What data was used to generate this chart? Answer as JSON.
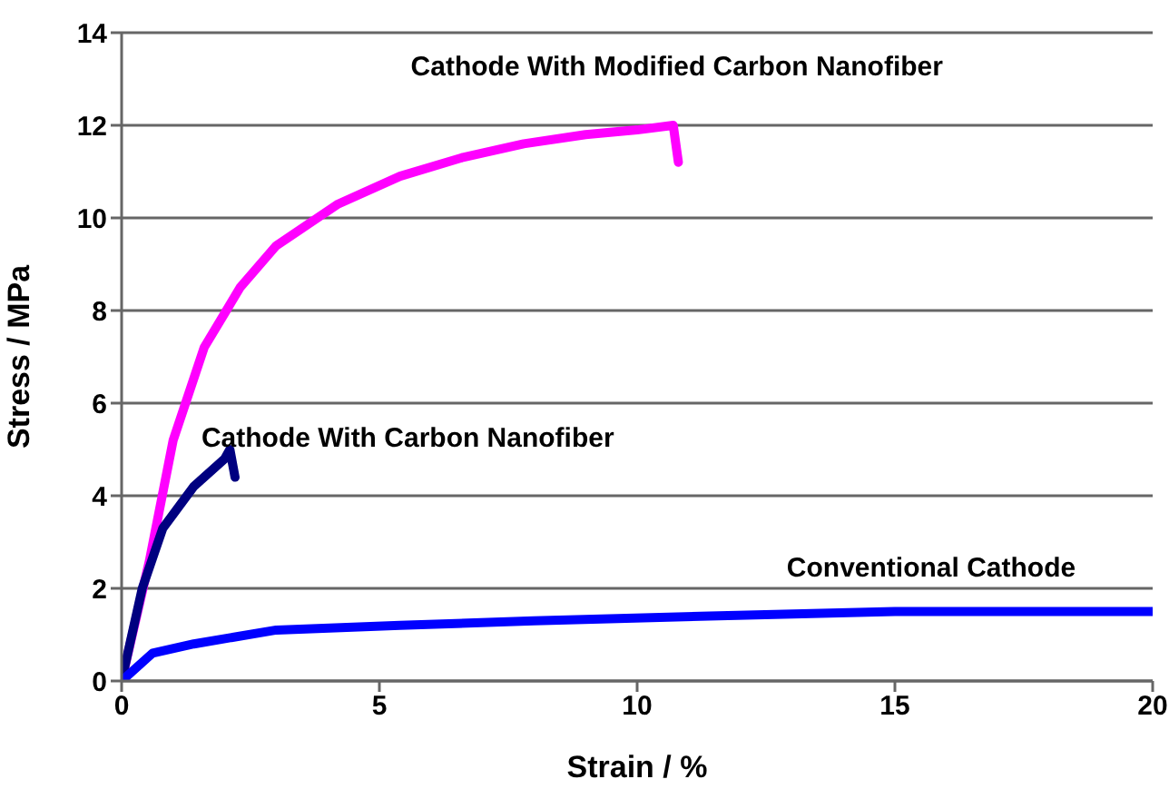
{
  "chart_data": {
    "type": "line",
    "xlabel": "Strain / %",
    "ylabel": "Stress / MPa",
    "xlim": [
      0,
      20
    ],
    "xticks": [
      0,
      5,
      10,
      15,
      20
    ],
    "ylim": [
      0,
      14
    ],
    "yticks": [
      0,
      2,
      4,
      6,
      8,
      10,
      12,
      14
    ],
    "grid": "y",
    "legend": false,
    "marker": "none",
    "line_style": "solid",
    "series": [
      {
        "name": "Cathode With Modified Carbon Nanofiber",
        "color": "#ff00ff",
        "x": [
          0,
          0.54,
          1.0,
          1.6,
          2.3,
          3.0,
          4.2,
          5.4,
          6.6,
          7.8,
          9.0,
          10.0,
          10.7,
          10.8
        ],
        "values": [
          0,
          2.6,
          5.2,
          7.2,
          8.5,
          9.4,
          10.3,
          10.9,
          11.3,
          11.6,
          11.8,
          11.9,
          12.0,
          11.2
        ]
      },
      {
        "name": "Cathode With Carbon Nanofiber",
        "color": "#000080",
        "x": [
          0,
          0.4,
          0.8,
          1.4,
          2.0,
          2.1,
          2.2
        ],
        "values": [
          0,
          2.0,
          3.3,
          4.2,
          4.8,
          5.0,
          4.4
        ]
      },
      {
        "name": "Conventional Cathode",
        "color": "#0000ff",
        "x": [
          0,
          0.6,
          1.4,
          3.0,
          5.4,
          8.0,
          11.4,
          15.0,
          20.0
        ],
        "values": [
          0,
          0.6,
          0.8,
          1.1,
          1.2,
          1.3,
          1.4,
          1.5,
          1.5
        ]
      }
    ]
  }
}
